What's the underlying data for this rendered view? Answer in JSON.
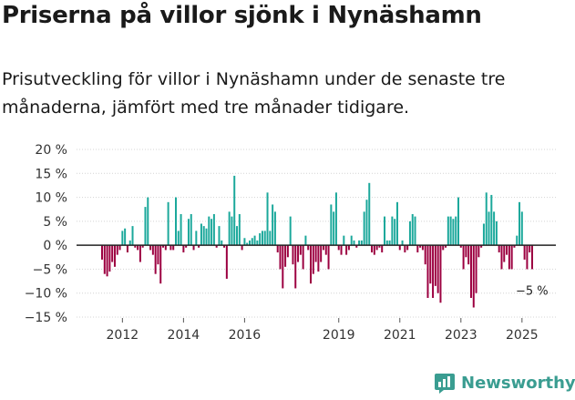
{
  "title": "Priserna på villor sjönk i Nynäshamn",
  "subtitle": "Prisutveckling för villor i Nynäshamn under de senaste tre månaderna, jämfört med tre månader tidigare.",
  "brand": "Newsworthy",
  "colors": {
    "positive": "#1ba89b",
    "negative": "#9c0040",
    "brand": "#3a9d91"
  },
  "chart_data": {
    "type": "bar",
    "title": "Priserna på villor sjönk i Nynäshamn",
    "xlabel": "",
    "ylabel": "",
    "ylim": [
      -15,
      20
    ],
    "yticks": [
      -15,
      -10,
      -5,
      0,
      5,
      10,
      15,
      20
    ],
    "ytick_labels": [
      "−15 %",
      "−10 %",
      "−5 %",
      "0 %",
      "5 %",
      "10 %",
      "15 %",
      "20 %"
    ],
    "xtick_labels": [
      "2012",
      "2014",
      "2016",
      "2019",
      "2021",
      "2023",
      "2025"
    ],
    "xtick_months": [
      8,
      32,
      56,
      93,
      117,
      141,
      165
    ],
    "start": "2011-05",
    "annotation": "−5 %",
    "values": [
      -3,
      -6,
      -6.5,
      -5.5,
      -3.5,
      -4.5,
      -2,
      -1,
      3,
      3.5,
      -1.5,
      1,
      4,
      -0.5,
      -1,
      -3.5,
      -0.5,
      8,
      10,
      -1,
      -2,
      -6,
      -4,
      -8,
      -0.5,
      -1,
      9,
      -1,
      -1,
      10,
      3,
      6.5,
      -1.5,
      -0.5,
      5.5,
      6.5,
      -1,
      3,
      -0.5,
      4.5,
      4,
      3.5,
      6,
      5.5,
      6.5,
      -0.5,
      4,
      1,
      -0.5,
      -7,
      7,
      6,
      14.5,
      4,
      6.5,
      -1,
      1.5,
      0.5,
      1,
      1.5,
      2,
      1,
      2.5,
      3,
      3,
      11,
      3,
      8.5,
      7,
      -1.5,
      -5,
      -9,
      -4.5,
      -2.5,
      6,
      -4,
      -9,
      -3.5,
      -2,
      -5,
      2,
      -1,
      -8,
      -6,
      -3.5,
      -5.5,
      -3.5,
      -1,
      -2,
      -5,
      8.5,
      7,
      11,
      -1,
      -2,
      2,
      -2,
      -1,
      2,
      1,
      -0.5,
      1,
      1,
      7,
      9.5,
      13,
      -1.5,
      -2,
      -1,
      -0.5,
      -1.5,
      6,
      1,
      1,
      6,
      5.5,
      9,
      -1,
      1,
      -1.5,
      -1,
      5,
      6.5,
      6,
      -1.5,
      -0.5,
      -1,
      -4,
      -11,
      -8,
      -11,
      -8.5,
      -10,
      -12,
      -1,
      -0.5,
      6,
      6,
      5.5,
      6,
      10,
      -0.5,
      -5,
      -2.5,
      -4,
      -11,
      -13,
      -10,
      -2.5,
      -0.5,
      4.5,
      11,
      7,
      10.5,
      7,
      5,
      -1.5,
      -5,
      -3.5,
      -2,
      -5,
      -5,
      -0.5,
      2,
      9,
      7,
      -3,
      -5,
      -1.5,
      -5
    ]
  }
}
